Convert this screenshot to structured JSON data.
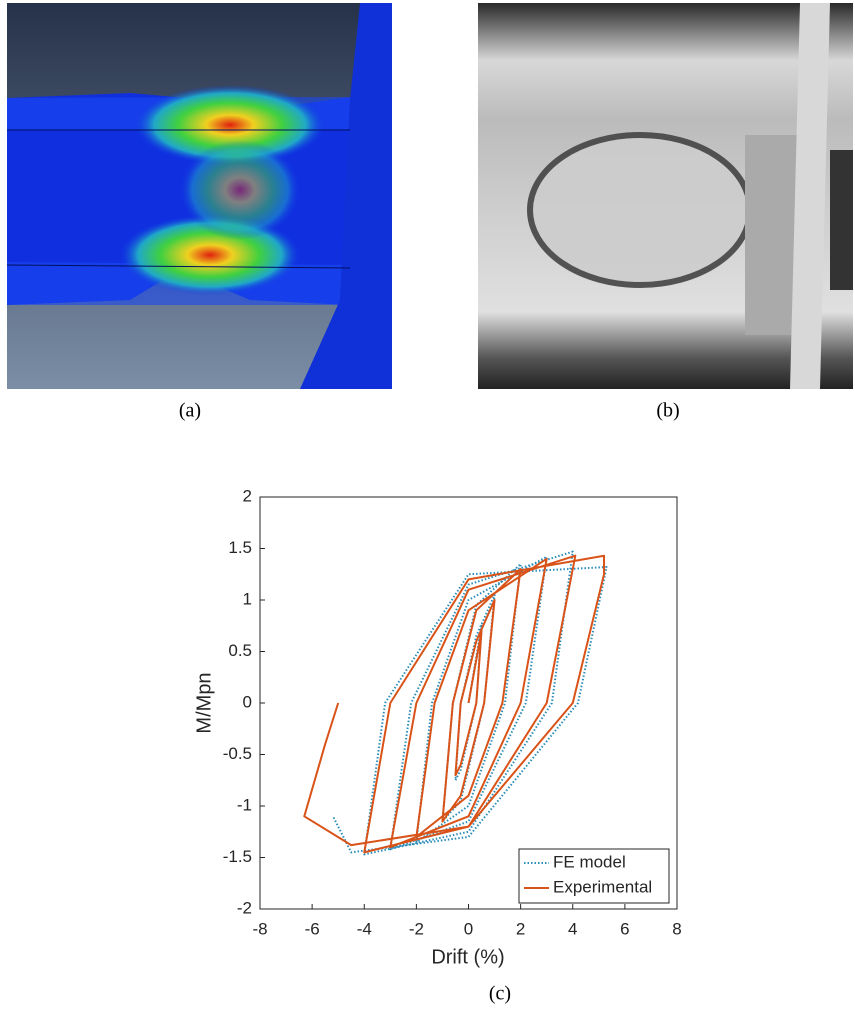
{
  "captions": [
    "(a)",
    "(b)",
    "(c)"
  ],
  "chart_data": {
    "type": "line",
    "xlabel": "Drift (%)",
    "ylabel": "M/Mpn",
    "xlim": [
      -8,
      8
    ],
    "ylim": [
      -2,
      2
    ],
    "xticks": [
      -8,
      -6,
      -4,
      -2,
      0,
      2,
      4,
      6,
      8
    ],
    "yticks": [
      -2,
      -1.5,
      -1,
      -0.5,
      0,
      0.5,
      1,
      1.5,
      2
    ],
    "legend": "lower right",
    "series": [
      {
        "name": "FE model",
        "color": "#2a8cb8",
        "style": "dotted",
        "x": [
          0,
          0.5,
          0.3,
          -0.3,
          -0.5,
          -0.3,
          0.3,
          1,
          0.6,
          -0.3,
          -1,
          -0.6,
          0.3,
          2,
          1.4,
          0,
          -2,
          -1.4,
          0,
          3,
          2.2,
          0,
          -3,
          -2.2,
          0,
          4,
          3.2,
          0,
          -4,
          -3.2,
          0,
          5.3,
          4.2,
          0,
          -4.5,
          -5.2
        ],
        "y": [
          0,
          0.75,
          0,
          -0.65,
          -0.75,
          0,
          0.65,
          1.05,
          0,
          -0.95,
          -1.15,
          0,
          0.95,
          1.35,
          0,
          -1.0,
          -1.35,
          0,
          1.0,
          1.42,
          0,
          -1.15,
          -1.42,
          0,
          1.15,
          1.47,
          0,
          -1.25,
          -1.47,
          0,
          1.25,
          1.32,
          0,
          -1.3,
          -1.45,
          -1.1
        ]
      },
      {
        "name": "Experimental",
        "color": "#d95319",
        "style": "solid",
        "x": [
          0,
          0.5,
          0.3,
          -0.3,
          -0.5,
          -0.3,
          0.3,
          1,
          0.6,
          -0.3,
          -1,
          -0.6,
          0.3,
          2,
          1.3,
          0,
          -2,
          -1.3,
          0,
          3,
          2,
          0,
          -3,
          -2,
          0,
          4.1,
          3,
          0,
          -4,
          -3,
          0,
          5.2,
          5.2,
          4,
          0,
          -4.5,
          -6.3,
          -5.5,
          -5
        ],
        "y": [
          0,
          0.7,
          0,
          -0.6,
          -0.7,
          0,
          0.6,
          1.0,
          0,
          -0.9,
          -1.15,
          0,
          0.9,
          1.3,
          0,
          -0.9,
          -1.3,
          0,
          0.9,
          1.4,
          0,
          -1.1,
          -1.4,
          0,
          1.1,
          1.43,
          0,
          -1.2,
          -1.45,
          0,
          1.2,
          1.43,
          1.25,
          0,
          -1.2,
          -1.38,
          -1.1,
          -0.4,
          0
        ]
      }
    ]
  }
}
